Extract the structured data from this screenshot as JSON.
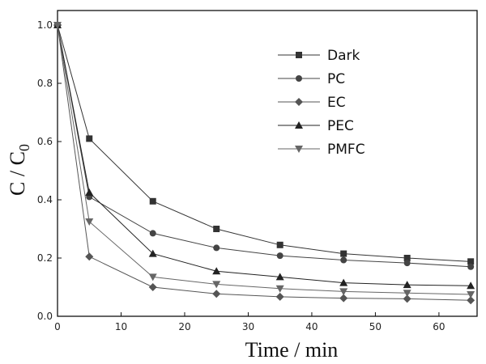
{
  "chart_data": {
    "type": "line",
    "title": "",
    "xlabel": "Time / min",
    "ylabel_main": "C / C",
    "ylabel_sub": "0",
    "xlim": [
      0,
      66
    ],
    "ylim": [
      0,
      1.05
    ],
    "xticks": [
      0,
      10,
      20,
      30,
      40,
      50,
      60
    ],
    "yticks": [
      0.0,
      0.2,
      0.4,
      0.6,
      0.8,
      1.0
    ],
    "ytick_labels": [
      "0.0",
      "0.2",
      "0.4",
      "0.6",
      "0.8",
      "1.0"
    ],
    "grid": false,
    "legend_position": "top-right",
    "x": [
      0,
      5,
      15,
      25,
      35,
      45,
      55,
      65
    ],
    "series": [
      {
        "name": "Dark",
        "marker": "square",
        "color": "#333333",
        "values": [
          1.0,
          0.61,
          0.395,
          0.3,
          0.245,
          0.215,
          0.2,
          0.188
        ]
      },
      {
        "name": "PC",
        "marker": "circle",
        "color": "#444444",
        "values": [
          1.0,
          0.41,
          0.285,
          0.235,
          0.208,
          0.193,
          0.183,
          0.17
        ]
      },
      {
        "name": "EC",
        "marker": "diamond",
        "color": "#555555",
        "values": [
          1.0,
          0.205,
          0.1,
          0.077,
          0.067,
          0.062,
          0.06,
          0.055
        ]
      },
      {
        "name": "PEC",
        "marker": "triangle-up",
        "color": "#222222",
        "values": [
          1.0,
          0.425,
          0.215,
          0.155,
          0.135,
          0.115,
          0.108,
          0.105
        ]
      },
      {
        "name": "PMFC",
        "marker": "triangle-down",
        "color": "#666666",
        "values": [
          1.0,
          0.325,
          0.135,
          0.11,
          0.095,
          0.085,
          0.08,
          0.075
        ]
      }
    ]
  }
}
